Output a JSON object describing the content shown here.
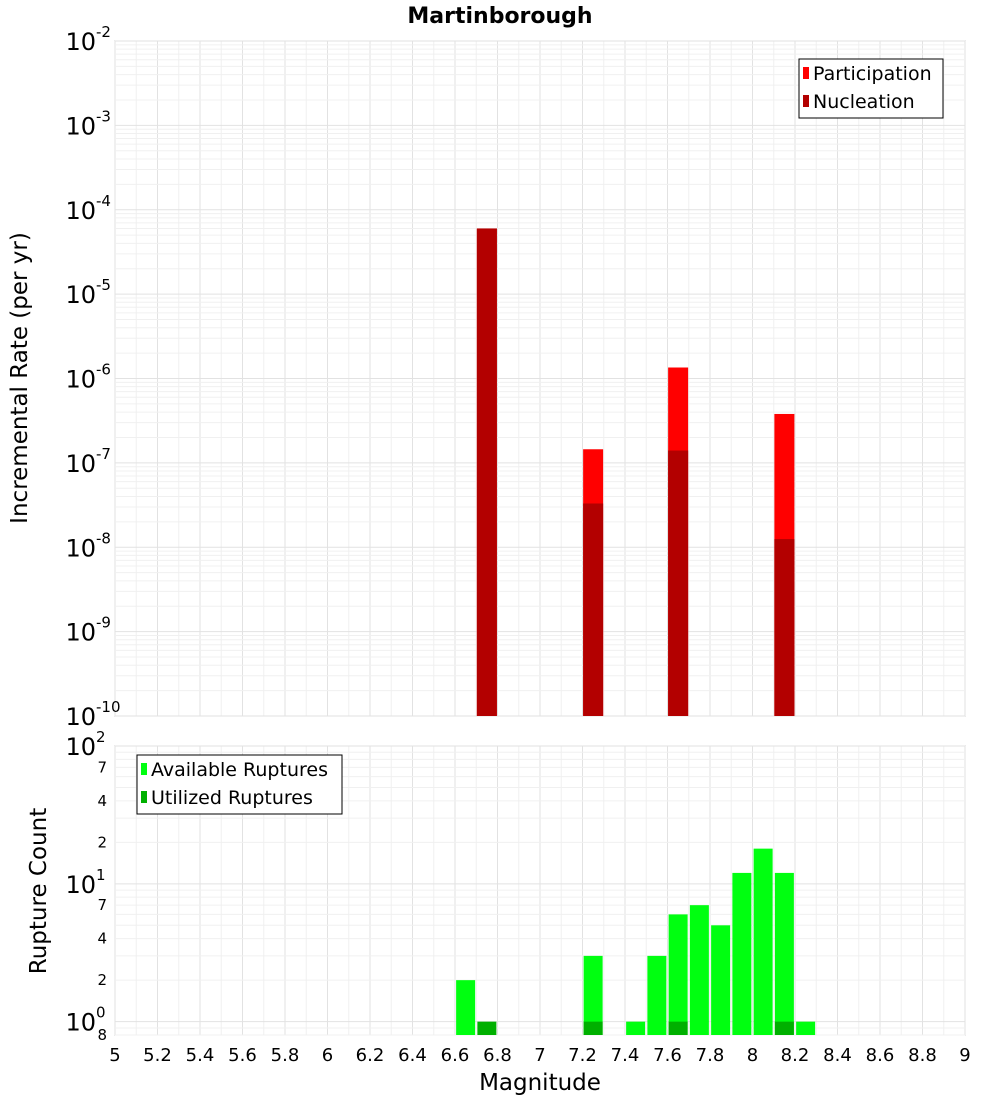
{
  "title": "Martinborough",
  "chart_data": [
    {
      "type": "bar",
      "title": "Martinborough",
      "xlabel": "",
      "ylabel": "Incremental Rate (per yr)",
      "xlim": [
        5,
        9
      ],
      "ylim": [
        1e-10,
        0.01
      ],
      "yscale": "log",
      "grid": true,
      "legend_position": "top-right",
      "y_ticks": [
        {
          "base": "10",
          "exp": "-2",
          "value": 0.01
        },
        {
          "base": "10",
          "exp": "-3",
          "value": 0.001
        },
        {
          "base": "10",
          "exp": "-4",
          "value": 0.0001
        },
        {
          "base": "10",
          "exp": "-5",
          "value": 1e-05
        },
        {
          "base": "10",
          "exp": "-6",
          "value": 1e-06
        },
        {
          "base": "10",
          "exp": "-7",
          "value": 1e-07
        },
        {
          "base": "10",
          "exp": "-8",
          "value": 1e-08
        },
        {
          "base": "10",
          "exp": "-9",
          "value": 1e-09
        },
        {
          "base": "10",
          "exp": "-10",
          "value": 1e-10
        }
      ],
      "series": [
        {
          "name": "Participation",
          "color": "#ff0000",
          "x": [
            6.75,
            7.25,
            7.65,
            8.15
          ],
          "values": [
            6e-05,
            1.45e-07,
            1.35e-06,
            3.8e-07
          ]
        },
        {
          "name": "Nucleation",
          "color": "#b30000",
          "x": [
            6.75,
            7.25,
            7.65,
            8.15
          ],
          "values": [
            6e-05,
            3.3e-08,
            1.4e-07,
            1.25e-08
          ]
        }
      ]
    },
    {
      "type": "bar",
      "title": "",
      "xlabel": "Magnitude",
      "ylabel": "Rupture Count",
      "xlim": [
        5,
        9
      ],
      "ylim": [
        0.8,
        100
      ],
      "yscale": "log",
      "grid": true,
      "legend_position": "top-left",
      "x_ticks": [
        "5",
        "5.2",
        "5.4",
        "5.6",
        "5.8",
        "6",
        "6.2",
        "6.4",
        "6.6",
        "6.8",
        "7",
        "7.2",
        "7.4",
        "7.6",
        "7.8",
        "8",
        "8.2",
        "8.4",
        "8.6",
        "8.8",
        "9"
      ],
      "y_ticks": [
        {
          "base": "10",
          "exp": "2",
          "value": 100
        },
        {
          "base": "10",
          "exp": "1",
          "value": 10
        },
        {
          "base": "10",
          "exp": "0",
          "value": 1
        }
      ],
      "y_minor_labels": [
        {
          "label": "7",
          "value": 70
        },
        {
          "label": "4",
          "value": 40
        },
        {
          "label": "2",
          "value": 20
        },
        {
          "label": "7",
          "value": 7
        },
        {
          "label": "4",
          "value": 4
        },
        {
          "label": "2",
          "value": 2
        },
        {
          "label": "8",
          "value": 0.8
        }
      ],
      "series": [
        {
          "name": "Available Ruptures",
          "color": "#00ff10",
          "x": [
            6.65,
            7.25,
            7.45,
            7.55,
            7.65,
            7.75,
            7.85,
            7.95,
            8.05,
            8.15,
            8.25
          ],
          "values": [
            2,
            3,
            1,
            3,
            6,
            7,
            5,
            12,
            18,
            12,
            1
          ]
        },
        {
          "name": "Utilized Ruptures",
          "color": "#00b000",
          "x": [
            6.75,
            7.25,
            7.65,
            8.15
          ],
          "values": [
            1,
            1,
            1,
            1
          ]
        }
      ]
    }
  ]
}
